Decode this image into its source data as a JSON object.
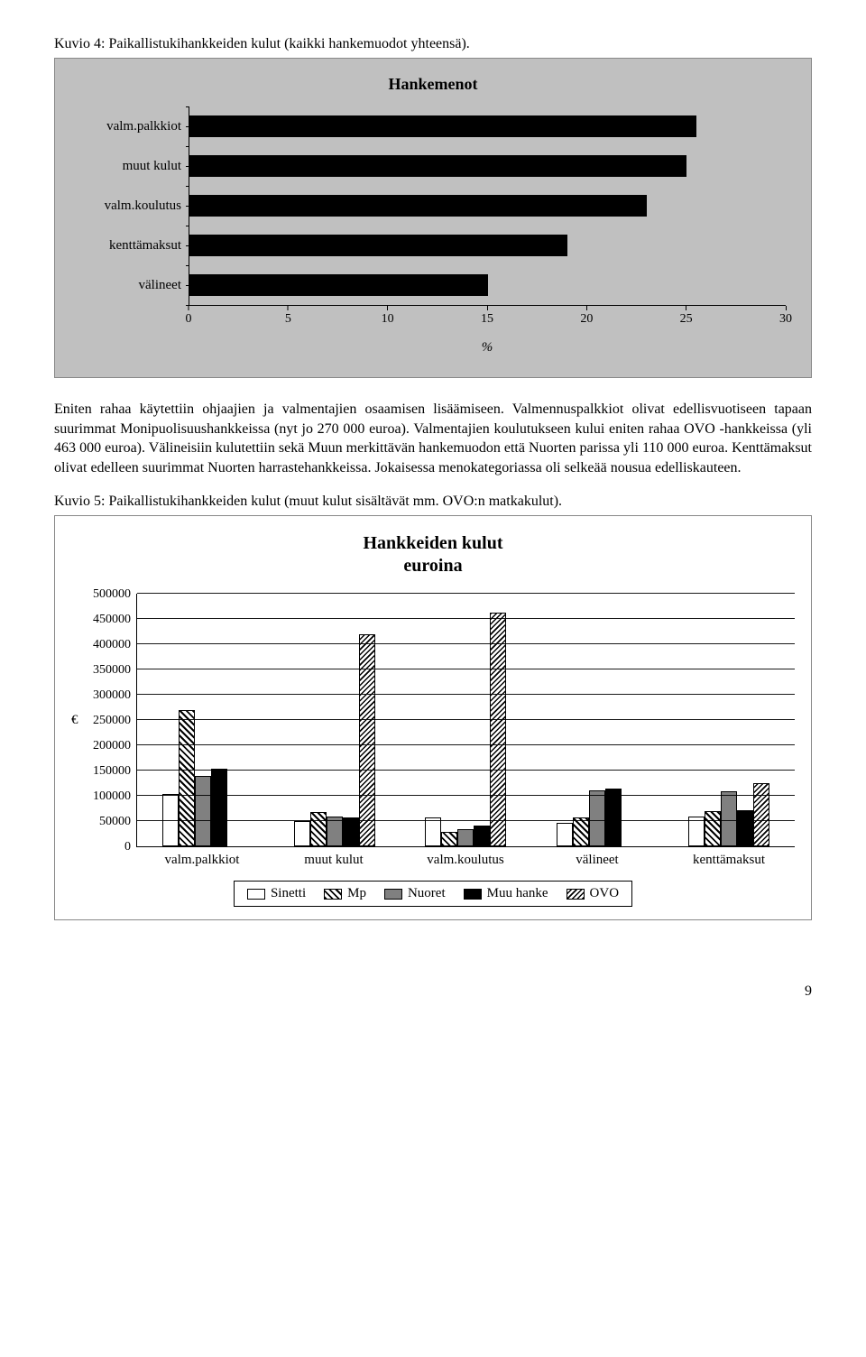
{
  "caption1": "Kuvio 4: Paikallistukihankkeiden kulut (kaikki hankemuodot yhteensä).",
  "chart1": {
    "type": "bar-horizontal",
    "title": "Hankemenot",
    "xlabel_symbol": "%",
    "xlim": [
      0,
      30
    ],
    "xtick_step": 5,
    "xticks": [
      "0",
      "5",
      "10",
      "15",
      "20",
      "25",
      "30"
    ],
    "bar_color": "#000000",
    "background_color": "#c0c0c0",
    "categories": [
      "valm.palkkiot",
      "muut kulut",
      "valm.koulutus",
      "kenttämaksut",
      "välineet"
    ],
    "values": [
      25.5,
      25,
      23,
      19,
      15
    ]
  },
  "para1": "Eniten rahaa käytettiin ohjaajien ja valmentajien osaamisen lisäämiseen. Valmennuspalkkiot olivat edellisvuotiseen tapaan suurimmat Monipuolisuushankkeissa (nyt jo 270 000 euroa). Valmentajien koulutukseen kului eniten rahaa OVO -hankkeissa (yli 463 000 euroa). Välineisiin kulutettiin sekä Muun merkittävän hankemuodon että Nuorten parissa yli 110 000 euroa. Kenttämaksut olivat edelleen suurimmat Nuorten harrastehankkeissa. Jokaisessa menokategoriassa oli selkeää nousua edelliskauteen.",
  "caption2": "Kuvio 5: Paikallistukihankkeiden kulut (muut kulut sisältävät mm. OVO:n matkakulut).",
  "chart2": {
    "type": "bar-grouped",
    "title_line1": "Hankkeiden kulut",
    "title_line2": "euroina",
    "ylim": [
      0,
      500000
    ],
    "ytick_step": 50000,
    "yticks": [
      "0",
      "50000",
      "100000",
      "150000",
      "200000",
      "250000",
      "300000",
      "350000",
      "400000",
      "450000",
      "500000"
    ],
    "currency_label": "€",
    "categories": [
      "valm.palkkiot",
      "muut kulut",
      "valm.koulutus",
      "välineet",
      "kenttämaksut"
    ],
    "series": [
      {
        "name": "Sinetti",
        "fill": "fill-white"
      },
      {
        "name": "Mp",
        "fill": "fill-diag"
      },
      {
        "name": "Nuoret",
        "fill": "fill-gray"
      },
      {
        "name": "Muu hanke",
        "fill": "fill-black"
      },
      {
        "name": "OVO",
        "fill": "fill-hatch"
      }
    ],
    "data": {
      "valm.palkkiot": [
        105000,
        270000,
        140000,
        155000,
        0
      ],
      "muut kulut": [
        50000,
        68000,
        60000,
        58000,
        420000
      ],
      "valm.koulutus": [
        58000,
        30000,
        35000,
        42000,
        463000
      ],
      "välineet": [
        48000,
        58000,
        112000,
        115000,
        0
      ],
      "kenttämaksut": [
        60000,
        70000,
        110000,
        72000,
        125000
      ]
    },
    "background_color": "#ffffff",
    "grid_color": "#000000"
  },
  "page_number": "9"
}
